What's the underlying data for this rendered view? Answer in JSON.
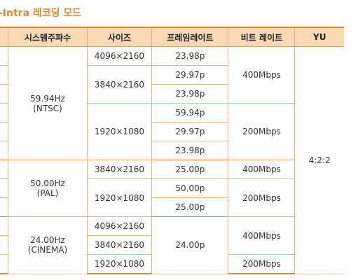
{
  "title": "-Intra 레코딩 모드",
  "headers": [
    "",
    "시스템주파수",
    "사이즈",
    "프레임레이트",
    "비트 레이트",
    "YU"
  ],
  "freq": {
    "ntsc": [
      "59.94Hz",
      "(NTSC)"
    ],
    "pal": [
      "50.00Hz",
      "(PAL)"
    ],
    "cinema": [
      "24.00Hz",
      "(CINEMA)"
    ]
  },
  "size": {
    "s4096": "4096×2160",
    "s3840": "3840×2160",
    "s1920": "1920×1080"
  },
  "fps": {
    "f2398": "23.98p",
    "f2997": "29.97p",
    "f5994": "59.94p",
    "f2500": "25.00p",
    "f5000": "50.00p",
    "f2400": "24.00p"
  },
  "bitrate": {
    "b400": "400Mbps",
    "b200": "200Mbps"
  },
  "yuv": "4:2:2"
}
